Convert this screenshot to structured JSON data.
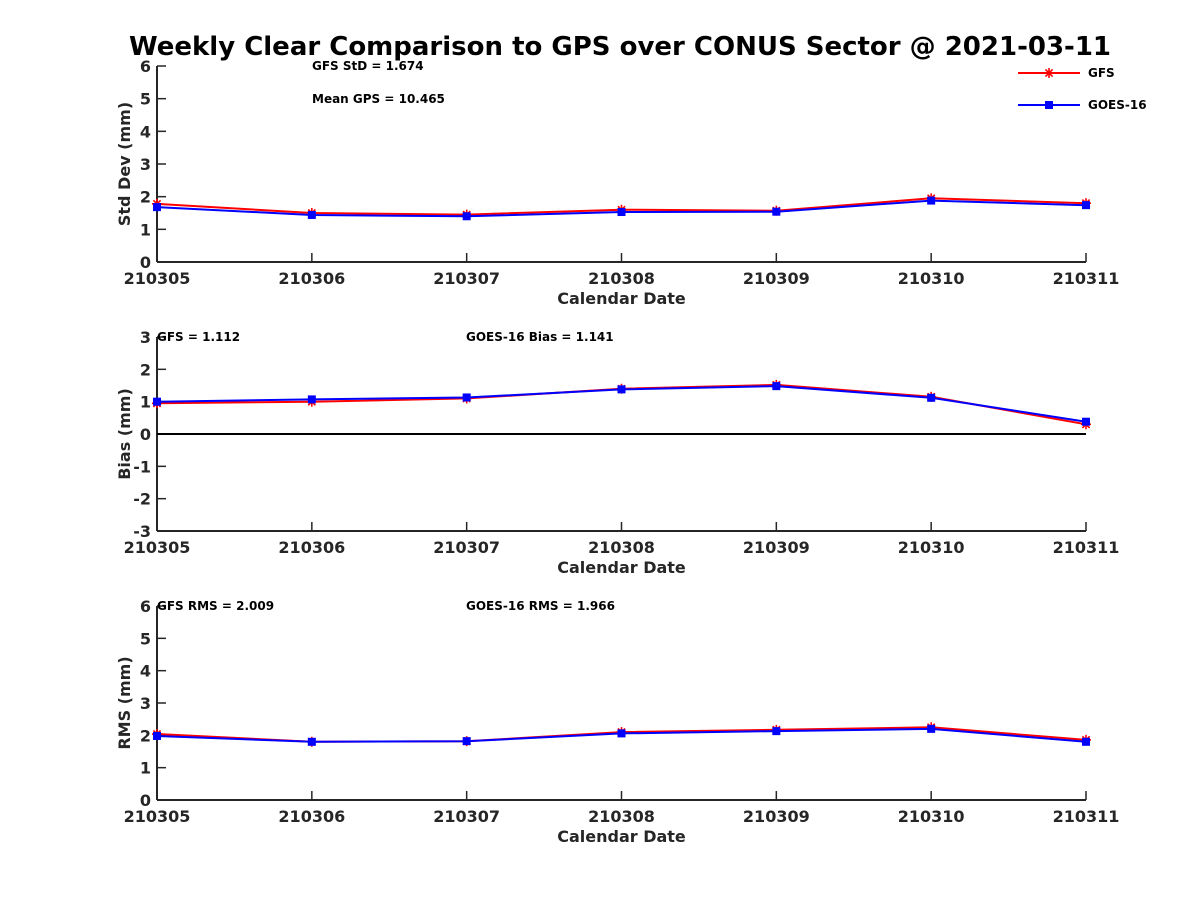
{
  "title": "Weekly Clear Comparison to GPS over CONUS Sector @ 2021-03-11",
  "legend": [
    {
      "name": "GFS",
      "color": "#ff0000",
      "marker": "asterisk"
    },
    {
      "name": "GOES-16",
      "color": "#0000ff",
      "marker": "square"
    }
  ],
  "chart_data": [
    {
      "type": "line",
      "categories": [
        "210305",
        "210306",
        "210307",
        "210308",
        "210309",
        "210310",
        "210311"
      ],
      "xlabel": "Calendar Date",
      "ylabel": "Std Dev (mm)",
      "ylim": [
        0,
        6
      ],
      "yticks": [
        "0",
        "1",
        "2",
        "3",
        "4",
        "5",
        "6"
      ],
      "annotations": [
        "GFS StD = 1.674",
        "Mean GPS = 10.465"
      ],
      "series": [
        {
          "name": "GFS",
          "color": "#ff0000",
          "values": [
            1.78,
            1.5,
            1.45,
            1.6,
            1.57,
            1.95,
            1.8
          ]
        },
        {
          "name": "GOES-16",
          "color": "#0000ff",
          "values": [
            1.68,
            1.44,
            1.4,
            1.53,
            1.54,
            1.88,
            1.74
          ]
        }
      ]
    },
    {
      "type": "line",
      "categories": [
        "210305",
        "210306",
        "210307",
        "210308",
        "210309",
        "210310",
        "210311"
      ],
      "xlabel": "Calendar Date",
      "ylabel": "Bias (mm)",
      "ylim": [
        -3,
        3
      ],
      "yticks": [
        "-3",
        "-2",
        "-1",
        "0",
        "1",
        "2",
        "3"
      ],
      "zero_line": true,
      "annotations": [
        "GFS = 1.112",
        "GOES-16 Bias  = 1.141"
      ],
      "series": [
        {
          "name": "GFS",
          "color": "#ff0000",
          "values": [
            0.95,
            1.0,
            1.1,
            1.4,
            1.52,
            1.15,
            0.3
          ]
        },
        {
          "name": "GOES-16",
          "color": "#0000ff",
          "values": [
            1.0,
            1.07,
            1.13,
            1.38,
            1.48,
            1.12,
            0.38
          ]
        }
      ]
    },
    {
      "type": "line",
      "categories": [
        "210305",
        "210306",
        "210307",
        "210308",
        "210309",
        "210310",
        "210311"
      ],
      "xlabel": "Calendar Date",
      "ylabel": "RMS (mm)",
      "ylim": [
        0,
        6
      ],
      "yticks": [
        "0",
        "1",
        "2",
        "3",
        "4",
        "5",
        "6"
      ],
      "annotations": [
        "GFS RMS = 2.009",
        "GOES-16 RMS = 1.966"
      ],
      "series": [
        {
          "name": "GFS",
          "color": "#ff0000",
          "values": [
            2.04,
            1.8,
            1.82,
            2.1,
            2.17,
            2.25,
            1.86
          ]
        },
        {
          "name": "GOES-16",
          "color": "#0000ff",
          "values": [
            1.98,
            1.8,
            1.82,
            2.06,
            2.13,
            2.2,
            1.8
          ]
        }
      ]
    }
  ]
}
